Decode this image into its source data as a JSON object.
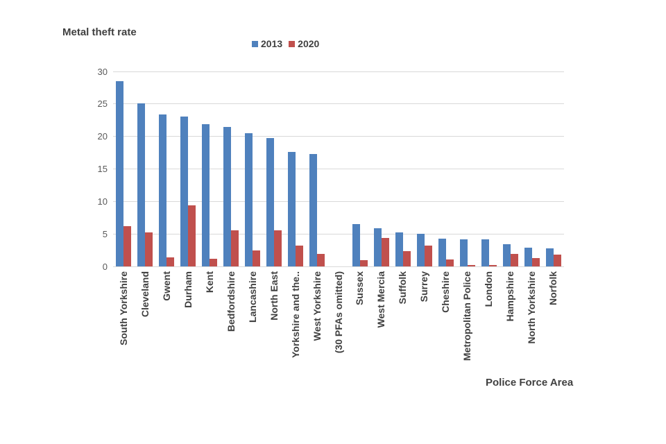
{
  "title": "Metal theft rate",
  "xaxis_title": "Police Force Area",
  "colors": {
    "series_2013": "#4F81BD",
    "series_2020": "#C0504D",
    "gridline": "#D9D9D9",
    "tick_text": "#595959",
    "label_text": "#404040"
  },
  "chart_data": {
    "type": "bar",
    "title": "Metal theft rate",
    "xlabel": "Police Force Area",
    "ylabel": "",
    "ylim": [
      0,
      30
    ],
    "yticks": [
      0,
      5,
      10,
      15,
      20,
      25,
      30
    ],
    "grid": true,
    "legend_position": "top-center",
    "categories": [
      "South Yorkshire",
      "Cleveland",
      "Gwent",
      "Durham",
      "Kent",
      "Bedfordshire",
      "Lancashire",
      "North East",
      "Yorkshire and the..",
      "West Yorkshire",
      "(30 PFAs omitted)",
      "Sussex",
      "West Mercia",
      "Suffolk",
      "Surrey",
      "Cheshire",
      "Metropolitan Police",
      "London",
      "Hampshire",
      "North Yorkshire",
      "Norfolk"
    ],
    "series": [
      {
        "name": "2013",
        "color": "#4F81BD",
        "values": [
          28.5,
          25.1,
          23.4,
          23.1,
          21.9,
          21.5,
          20.5,
          19.8,
          17.6,
          17.3,
          null,
          6.5,
          5.9,
          5.2,
          5.0,
          4.3,
          4.2,
          4.2,
          3.4,
          2.9,
          2.8
        ]
      },
      {
        "name": "2020",
        "color": "#C0504D",
        "values": [
          6.2,
          5.2,
          1.4,
          9.4,
          1.2,
          5.5,
          2.5,
          5.5,
          3.2,
          1.9,
          null,
          1.0,
          4.4,
          2.4,
          3.2,
          1.1,
          0.2,
          0.2,
          1.9,
          1.3,
          1.8
        ]
      }
    ]
  }
}
